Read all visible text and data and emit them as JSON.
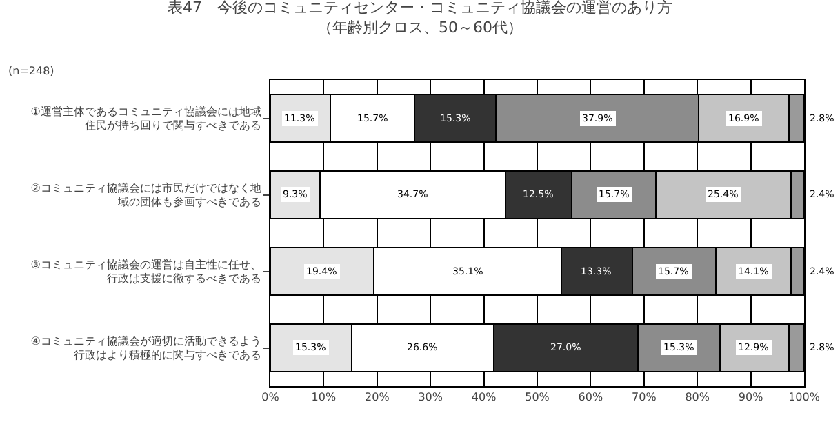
{
  "chart_data": {
    "type": "bar",
    "orientation": "horizontal",
    "stacked": true,
    "title": "表47　今後のコミュニティセンター・コミュニティ協議会の運営のあり方（年齢別クロス、50～60代）",
    "annotations": [
      "(n=248)"
    ],
    "categories": [
      "①運営主体であるコミュニティ協議会には地域住民が持ち回りで関与すべきである",
      "②コミュニティ協議会には市民だけではなく地域の団体も参画すべきである",
      "③コミュニティ協議会の運営は自主性に任せ、行政は支援に徹するべきである",
      "④コミュニティ協議会が適切に活動できるよう行政はより積極的に関与すべきである"
    ],
    "series": [
      {
        "color": "#e4e4e4",
        "values": [
          11.3,
          9.3,
          19.4,
          15.3
        ],
        "value_labels": [
          "11.3%",
          "9.3%",
          "19.4%",
          "15.3%"
        ]
      },
      {
        "color": "#ffffff",
        "values": [
          15.7,
          34.7,
          35.1,
          26.6
        ],
        "value_labels": [
          "15.7%",
          "34.7%",
          "35.1%",
          "26.6%"
        ]
      },
      {
        "color": "#333333",
        "values": [
          15.3,
          12.5,
          13.3,
          27.0
        ],
        "value_labels": [
          "15.3%",
          "12.5%",
          "13.3%",
          "27.0%"
        ]
      },
      {
        "color": "#8c8c8c",
        "values": [
          37.9,
          15.7,
          15.7,
          15.3
        ],
        "value_labels": [
          "37.9%",
          "15.7%",
          "15.7%",
          "15.3%"
        ]
      },
      {
        "color": "#c4c4c4",
        "values": [
          16.9,
          25.4,
          14.1,
          12.9
        ],
        "value_labels": [
          "16.9%",
          "25.4%",
          "14.1%",
          "12.9%"
        ]
      },
      {
        "color": "#9a9a9a",
        "values": [
          2.8,
          2.4,
          2.4,
          2.8
        ],
        "value_labels": [
          "2.8%",
          "2.4%",
          "2.4%",
          "2.8%"
        ]
      }
    ],
    "xlim": [
      0,
      100
    ],
    "xticks": [
      {
        "value": 0,
        "label": "0%"
      },
      {
        "value": 10,
        "label": "10%"
      },
      {
        "value": 20,
        "label": "20%"
      },
      {
        "value": 30,
        "label": "30%"
      },
      {
        "value": 40,
        "label": "40%"
      },
      {
        "value": 50,
        "label": "50%"
      },
      {
        "value": 60,
        "label": "60%"
      },
      {
        "value": 70,
        "label": "70%"
      },
      {
        "value": 80,
        "label": "80%"
      },
      {
        "value": 90,
        "label": "90%"
      },
      {
        "value": 100,
        "label": "100%"
      }
    ],
    "grid": "x"
  }
}
